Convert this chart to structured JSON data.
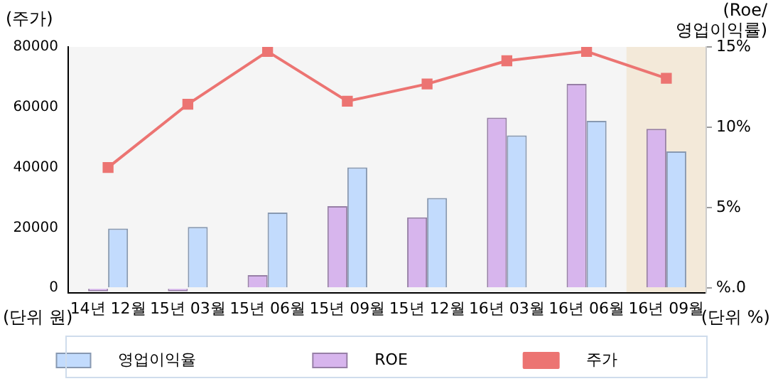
{
  "chart_data": {
    "type": "bar",
    "categories": [
      "14년 12월",
      "15년 03월",
      "15년 06월",
      "15년 09월",
      "15년 12월",
      "16년 03월",
      "16년 06월",
      "16년 09월"
    ],
    "series": [
      {
        "name": "영업이익율",
        "axis": "y2",
        "color": "#c2dbfd",
        "values": [
          3.7,
          3.8,
          4.7,
          7.5,
          5.6,
          9.5,
          10.4,
          8.5
        ]
      },
      {
        "name": "ROE",
        "axis": "y2",
        "color": "#d7b5ed",
        "values": [
          -0.2,
          -0.2,
          0.8,
          5.1,
          4.4,
          10.6,
          12.7,
          9.9
        ]
      },
      {
        "name": "주가",
        "type": "line",
        "color": "#ec7472",
        "values": [
          40000,
          61000,
          78500,
          62000,
          67700,
          75400,
          78500,
          69600
        ]
      }
    ],
    "ylabel": "(주가)",
    "y2label": "(Roe/ 영업이익률)",
    "ylim": [
      -1600,
      80000
    ],
    "yticks": [
      0,
      20000,
      40000,
      60000,
      80000
    ],
    "y2lim": [
      -0.3,
      15
    ],
    "y2ticks": [
      {
        "value": 0,
        "label": "%.0"
      },
      {
        "value": 5,
        "label": "5%"
      },
      {
        "value": 10,
        "label": "10%"
      },
      {
        "value": 15,
        "label": "15%"
      }
    ],
    "bands": [
      {
        "axis": "x",
        "from": "16년 09월",
        "to": "16년 09월",
        "color": "#f3e9d9"
      }
    ],
    "annotations": [
      "(단위 원)",
      "(단위 %)"
    ],
    "legend": "bottom",
    "marker": "square",
    "line_style": "solid"
  }
}
